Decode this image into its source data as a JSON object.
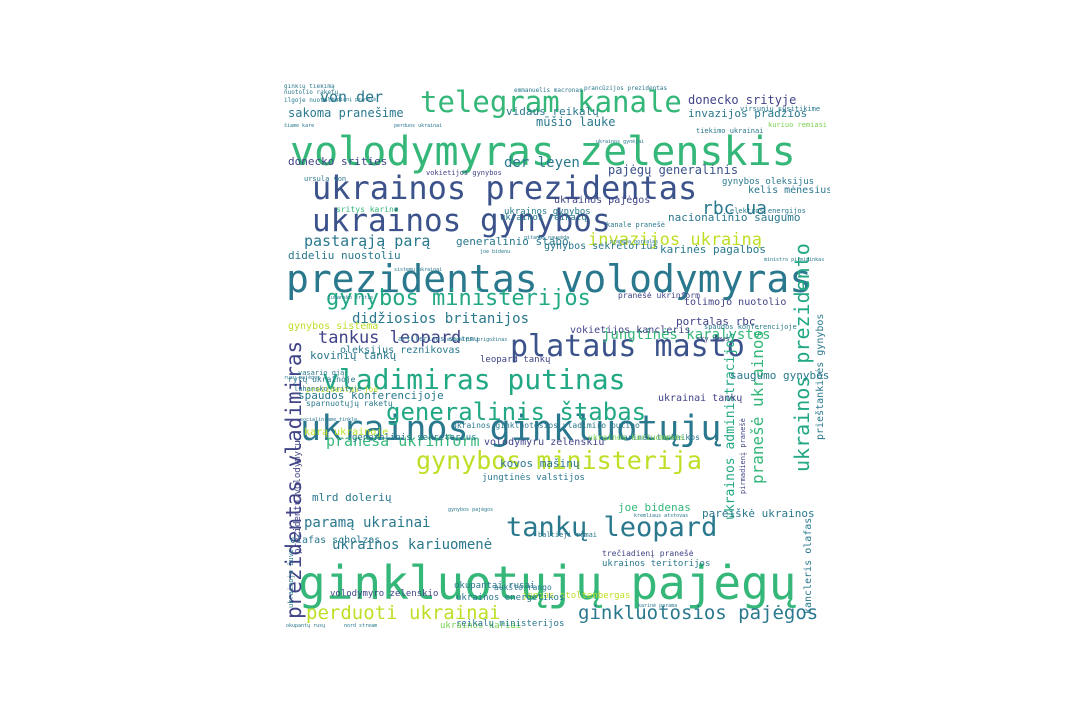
{
  "palette": {
    "c1": "#440154",
    "c2": "#414487",
    "c3": "#2a788e",
    "c4": "#22a884",
    "c5": "#35b779",
    "c6": "#7ad151",
    "c7": "#bddf26",
    "c8": "#3b528b"
  },
  "words": [
    {
      "text": "ginkluotųjų pajėgų",
      "weight": 100,
      "color": "c5"
    },
    {
      "text": "volodymyras zelenskis",
      "weight": 86,
      "color": "c5"
    },
    {
      "text": "prezidentas volodymyras",
      "weight": 82,
      "color": "c3"
    },
    {
      "text": "ukrainos ginkluotųjų",
      "weight": 80,
      "color": "c3"
    },
    {
      "text": "ukrainos prezidentas",
      "weight": 74,
      "color": "c8"
    },
    {
      "text": "ukrainos gynybos",
      "weight": 72,
      "color": "c8"
    },
    {
      "text": "plataus masto",
      "weight": 70,
      "color": "c8"
    },
    {
      "text": "telegram kanale",
      "weight": 66,
      "color": "c5"
    },
    {
      "text": "vladimiras putinas",
      "weight": 64,
      "color": "c4"
    },
    {
      "text": "tankų leopard",
      "weight": 62,
      "color": "c3"
    },
    {
      "text": "gynybos ministerija",
      "weight": 60,
      "color": "c7"
    },
    {
      "text": "generalinis štabas",
      "weight": 56,
      "color": "c4"
    },
    {
      "text": "gynybos ministerijos",
      "weight": 54,
      "color": "c4"
    },
    {
      "text": "prezidentas vladimiras",
      "weight": 50,
      "color": "c2"
    },
    {
      "text": "ukrainos prezidento",
      "weight": 46,
      "color": "c4"
    },
    {
      "text": "perduoti ukrainai",
      "weight": 44,
      "color": "c7"
    },
    {
      "text": "ginkluotosios pajėgos",
      "weight": 44,
      "color": "c3"
    },
    {
      "text": "rbc ua",
      "weight": 42,
      "color": "c3"
    },
    {
      "text": "invazijos ukrainą",
      "weight": 40,
      "color": "c7"
    },
    {
      "text": "tankus leopard",
      "weight": 40,
      "color": "c2"
    },
    {
      "text": "pranešė ukrainos",
      "weight": 38,
      "color": "c5"
    },
    {
      "text": "praneša ukrinform",
      "weight": 36,
      "color": "c5"
    },
    {
      "text": "pastarąją parą",
      "weight": 34,
      "color": "c3"
    },
    {
      "text": "paramą ukrainai",
      "weight": 32,
      "color": "c3"
    },
    {
      "text": "ukrainos kariuomenė",
      "weight": 32,
      "color": "c3"
    },
    {
      "text": "von der",
      "weight": 30,
      "color": "c3"
    },
    {
      "text": "der leyen",
      "weight": 30,
      "color": "c3"
    },
    {
      "text": "didžiosios britanijos",
      "weight": 30,
      "color": "c3"
    },
    {
      "text": "jungtinės karalystės",
      "weight": 30,
      "color": "c5"
    },
    {
      "text": "ukrainos administracijos",
      "weight": 28,
      "color": "c4"
    },
    {
      "text": "donecko srityje",
      "weight": 28,
      "color": "c2"
    },
    {
      "text": "sakoma pranešime",
      "weight": 26,
      "color": "c3"
    },
    {
      "text": "mūšio lauke",
      "weight": 26,
      "color": "c3"
    },
    {
      "text": "pajėgų generalinis",
      "weight": 26,
      "color": "c8"
    },
    {
      "text": "nacionalinio saugumo",
      "weight": 26,
      "color": "c3"
    },
    {
      "text": "invazijos pradžios",
      "weight": 26,
      "color": "c3"
    },
    {
      "text": "karinės pagalbos",
      "weight": 26,
      "color": "c3"
    },
    {
      "text": "kovinių tankų",
      "weight": 26,
      "color": "c3"
    },
    {
      "text": "spaudos konferencijoje",
      "weight": 26,
      "color": "c3"
    },
    {
      "text": "generalinio štabo",
      "weight": 24,
      "color": "c3"
    },
    {
      "text": "dideliu nuostoliu",
      "weight": 24,
      "color": "c3"
    },
    {
      "text": "portalas rbc",
      "weight": 24,
      "color": "c2"
    },
    {
      "text": "mlrd dolerių",
      "weight": 24,
      "color": "c3"
    },
    {
      "text": "kovos mašinų",
      "weight": 24,
      "color": "c3"
    },
    {
      "text": "pareiškė ukrainos",
      "weight": 24,
      "color": "c3"
    },
    {
      "text": "joe bidenas",
      "weight": 24,
      "color": "c5"
    },
    {
      "text": "saugumo gynybos",
      "weight": 24,
      "color": "c3"
    },
    {
      "text": "vidaus reikalų",
      "weight": 22,
      "color": "c3"
    },
    {
      "text": "donecko srities",
      "weight": 22,
      "color": "c2"
    },
    {
      "text": "ukrainos pajėgos",
      "weight": 22,
      "color": "c2"
    },
    {
      "text": "gynybos sekretorius",
      "weight": 22,
      "color": "c3"
    },
    {
      "text": "kelis mėnesius",
      "weight": 22,
      "color": "c3"
    },
    {
      "text": "tolimojo nuotolio",
      "weight": 20,
      "color": "c2"
    },
    {
      "text": "volodymyru zelenskiu",
      "weight": 20,
      "color": "c2"
    },
    {
      "text": "olafas scholzas",
      "weight": 20,
      "color": "c3"
    },
    {
      "text": "ukrainai tankų",
      "weight": 20,
      "color": "c2"
    },
    {
      "text": "karą ukrainoje",
      "weight": 20,
      "color": "c7"
    },
    {
      "text": "gynybos sistema",
      "weight": 18,
      "color": "c7"
    },
    {
      "text": "oleksijus reznikovas",
      "weight": 18,
      "color": "c3"
    },
    {
      "text": "vokietijos kancleris",
      "weight": 18,
      "color": "c2"
    },
    {
      "text": "prieštankinės gynybos",
      "weight": 18,
      "color": "c3"
    },
    {
      "text": "kancleris olafas",
      "weight": 18,
      "color": "c3"
    },
    {
      "text": "leopard tankų",
      "weight": 16,
      "color": "c2"
    },
    {
      "text": "gynybos oleksijus",
      "weight": 16,
      "color": "c3"
    },
    {
      "text": "ukrainos gynybos",
      "weight": 16,
      "color": "c3"
    },
    {
      "text": "ukrainos reikalų",
      "weight": 16,
      "color": "c3"
    },
    {
      "text": "ukrainos kariai",
      "weight": 16,
      "color": "c6"
    },
    {
      "text": "okupantai rusai",
      "weight": 16,
      "color": "c3"
    },
    {
      "text": "jungtinės valstijos",
      "weight": 16,
      "color": "c3"
    },
    {
      "text": "generalinis sekretorius",
      "weight": 16,
      "color": "c3"
    },
    {
      "text": "ukrainos teritorijos",
      "weight": 16,
      "color": "c3"
    },
    {
      "text": "jensas stoltenbergas",
      "weight": 16,
      "color": "c7"
    },
    {
      "text": "reikalų ministerijos",
      "weight": 16,
      "color": "c3"
    },
    {
      "text": "volodymyro zelenskio",
      "weight": 16,
      "color": "c2"
    },
    {
      "text": "ukrainos energetikos",
      "weight": 16,
      "color": "c3"
    },
    {
      "text": "prezidentu volodymyru",
      "weight": 16,
      "color": "c2"
    },
    {
      "text": "aukšto rango",
      "weight": 14,
      "color": "c3"
    },
    {
      "text": "trečiadienį pranešė",
      "weight": 14,
      "color": "c2"
    },
    {
      "text": "sritys karine",
      "weight": 14,
      "color": "c5"
    },
    {
      "text": "prezidentas joe",
      "weight": 14,
      "color": "c7"
    },
    {
      "text": "sparnuotųjų raketų",
      "weight": 14,
      "color": "c3"
    },
    {
      "text": "rytų ukrainoje",
      "weight": 14,
      "color": "c3"
    },
    {
      "text": "ukrainos ginkluotosios vladimiro putino",
      "weight": 14,
      "color": "c3"
    },
    {
      "text": "karinės technikos",
      "weight": 14,
      "color": "c3"
    },
    {
      "text": "pranešė ukrinform",
      "weight": 14,
      "color": "c2"
    },
    {
      "text": "ukrainos kariuomenės",
      "weight": 14,
      "color": "c6"
    },
    {
      "text": "elektros energijos",
      "weight": 12,
      "color": "c3"
    },
    {
      "text": "virsunių susitikime",
      "weight": 12,
      "color": "c3"
    },
    {
      "text": "pirmadienį pranešė",
      "weight": 12,
      "color": "c2"
    },
    {
      "text": "vokietijos gynybos",
      "weight": 12,
      "color": "c2"
    },
    {
      "text": "ursula von",
      "weight": 12,
      "color": "c3"
    },
    {
      "text": "vasario gją",
      "weight": 12,
      "color": "c3"
    },
    {
      "text": "luhansko srityje",
      "weight": 12,
      "color": "c3"
    },
    {
      "text": "sky news",
      "weight": 12,
      "color": "c2"
    },
    {
      "text": "spaudos konferencijoje",
      "weight": 12,
      "color": "c3"
    },
    {
      "text": "artilerijos sistemų",
      "weight": 12,
      "color": "c3"
    },
    {
      "text": "tiekimo ukrainai",
      "weight": 12,
      "color": "c3"
    },
    {
      "text": "kanale pranešė",
      "weight": 12,
      "color": "c3"
    },
    {
      "text": "kuriuo remiasi",
      "weight": 12,
      "color": "c6"
    },
    {
      "text": "ukrainoje žuvo",
      "weight": 12,
      "color": "c3"
    },
    {
      "text": "baltieji rūmai",
      "weight": 12,
      "color": "c3"
    },
    {
      "text": "emmanuelis macronas",
      "weight": 10,
      "color": "c3"
    },
    {
      "text": "prancūzijos prezidentas",
      "weight": 10,
      "color": "c3"
    },
    {
      "text": "nuotolio raketų",
      "weight": 10,
      "color": "c3"
    },
    {
      "text": "ilgoje nuotolio",
      "weight": 10,
      "color": "c3"
    },
    {
      "text": "nord stream",
      "weight": 10,
      "color": "c3"
    },
    {
      "text": "okupantų rusų",
      "weight": 10,
      "color": "c3"
    },
    {
      "text": "karinė parama",
      "weight": 10,
      "color": "c3"
    },
    {
      "text": "rusų pajėgos",
      "weight": 10,
      "color": "c3"
    },
    {
      "text": "gitanas nausėda",
      "weight": 10,
      "color": "c3"
    },
    {
      "text": "sistemų ukrainai",
      "weight": 10,
      "color": "c3"
    },
    {
      "text": "praneša portalas",
      "weight": 10,
      "color": "c3"
    },
    {
      "text": "ukrainos gynėjai",
      "weight": 10,
      "color": "c3"
    },
    {
      "text": "šiame kare",
      "weight": 10,
      "color": "c3"
    },
    {
      "text": "ministro pirmininkas",
      "weight": 10,
      "color": "c3"
    },
    {
      "text": "luhansko sritis",
      "weight": 10,
      "color": "c3"
    },
    {
      "text": "jevgenijus prigožinas",
      "weight": 10,
      "color": "c3"
    },
    {
      "text": "socialiniame tinkle",
      "weight": 10,
      "color": "c3"
    },
    {
      "text": "kremliaus atstovas",
      "weight": 10,
      "color": "c3"
    },
    {
      "text": "pirmadienį pranešė",
      "weight": 10,
      "color": "c3"
    },
    {
      "text": "gynybos pajėgos",
      "weight": 10,
      "color": "c3"
    },
    {
      "text": "joe bidenu",
      "weight": 10,
      "color": "c3"
    },
    {
      "text": "perduos ukrainai",
      "weight": 10,
      "color": "c3"
    },
    {
      "text": "ginklų tiekimą",
      "weight": 10,
      "color": "c3"
    }
  ]
}
